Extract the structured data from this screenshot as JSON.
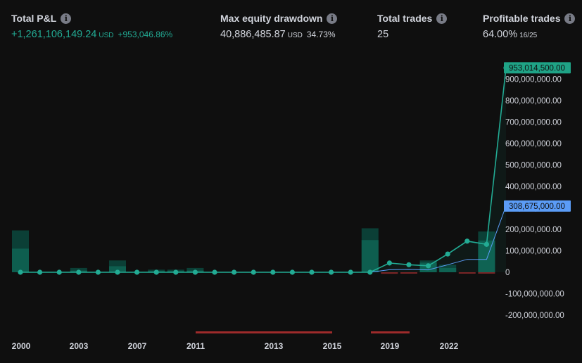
{
  "metrics": {
    "total_pnl": {
      "label": "Total P&L",
      "value": "+1,261,106,149.24",
      "unit": "USD",
      "percent": "+953,046.86%"
    },
    "max_drawdown": {
      "label": "Max equity drawdown",
      "value": "40,886,485.87",
      "unit": "USD",
      "percent": "34.73%"
    },
    "total_trades": {
      "label": "Total trades",
      "value": "25"
    },
    "profitable_trades": {
      "label": "Profitable trades",
      "value": "64.00%",
      "ratio": "16/25"
    }
  },
  "colors": {
    "equity_line": "#22ab94",
    "buy_hold_line": "#5b9cf6",
    "run_up_bar": "#0e5e4f",
    "drawdown_bar": "#7a2526",
    "drawdown_band": "#9e2b2b",
    "background": "#0f0f0f"
  },
  "chart_data": {
    "type": "line",
    "x_labels": [
      "2000",
      "2003",
      "2007",
      "2011",
      "2013",
      "2015",
      "2019",
      "2022"
    ],
    "y_ticks": [
      "900,000,000.00",
      "800,000,000.00",
      "700,000,000.00",
      "600,000,000.00",
      "500,000,000.00",
      "400,000,000.00",
      "300,000,000.00",
      "200,000,000.00",
      "100,000,000.00",
      "0",
      "-100,000,000.00",
      "-200,000,000.00"
    ],
    "ylim": [
      -230000000,
      980000000
    ],
    "series": [
      {
        "role": "equity",
        "last_label": "953,014,500.00",
        "values": [
          0,
          0,
          0,
          0,
          0,
          0,
          0,
          0,
          0,
          0,
          0,
          0,
          0,
          0,
          0,
          0,
          0,
          0,
          0,
          43000000,
          35000000,
          30000000,
          85000000,
          145000000,
          130000000,
          953014500
        ]
      },
      {
        "role": "buy_and_hold",
        "last_label": "308,675,000.00",
        "values": [
          0,
          0,
          0,
          0,
          0,
          0,
          0,
          0,
          0,
          0,
          0,
          0,
          0,
          0,
          0,
          0,
          0,
          0,
          0,
          12000000,
          13000000,
          11000000,
          35000000,
          60000000,
          60000000,
          308675000
        ]
      }
    ],
    "run_up_bars": [
      {
        "index": 0,
        "outer": 195000000,
        "inner": 110000000
      },
      {
        "index": 3,
        "outer": 20000000,
        "inner": 8000000
      },
      {
        "index": 5,
        "outer": 55000000,
        "inner": 28000000
      },
      {
        "index": 7,
        "outer": 12000000,
        "inner": 5000000
      },
      {
        "index": 8,
        "outer": 12000000,
        "inner": 5000000
      },
      {
        "index": 9,
        "outer": 20000000,
        "inner": 8000000
      },
      {
        "index": 18,
        "outer": 205000000,
        "inner": 150000000
      },
      {
        "index": 21,
        "outer": 55000000,
        "inner": 45000000
      },
      {
        "index": 22,
        "outer": 35000000,
        "inner": 20000000
      },
      {
        "index": 24,
        "outer": 190000000,
        "inner": 148000000
      }
    ],
    "drawdown_bars": [
      {
        "index": 19,
        "value": -7000000
      },
      {
        "index": 20,
        "value": -5000000
      },
      {
        "index": 23,
        "value": -4000000
      },
      {
        "index": 24,
        "value": -4000000
      }
    ]
  }
}
